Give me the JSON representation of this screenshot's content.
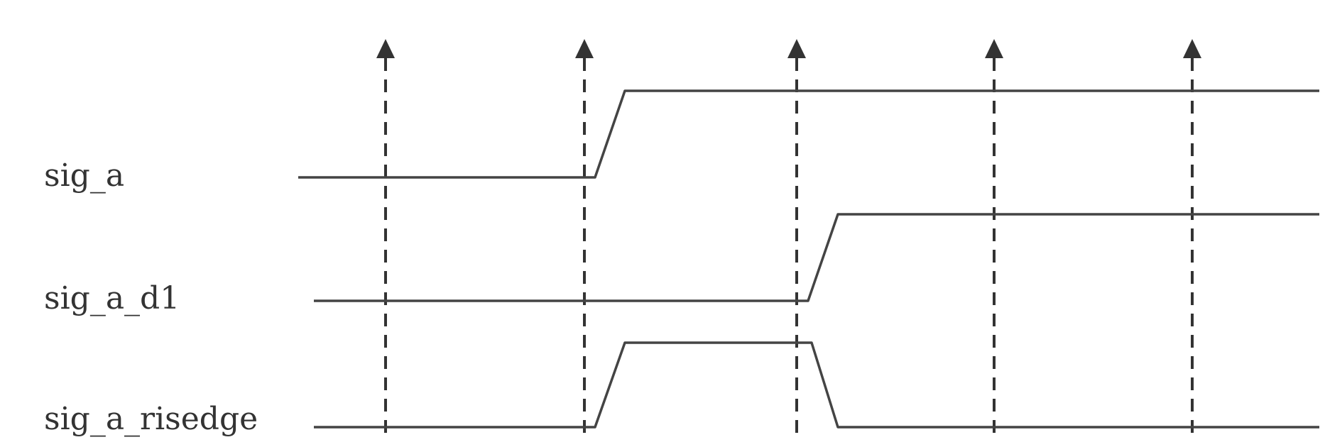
{
  "signals": [
    {
      "id": "sig_a",
      "label": "sig_a"
    },
    {
      "id": "sig_a_d1",
      "label": "sig_a_d1"
    },
    {
      "id": "sig_a_risedge",
      "label": "sig_a_risedge"
    }
  ],
  "clock_edges": 5,
  "colors": {
    "line": "#444444",
    "clock": "#333333",
    "text": "#333333"
  }
}
